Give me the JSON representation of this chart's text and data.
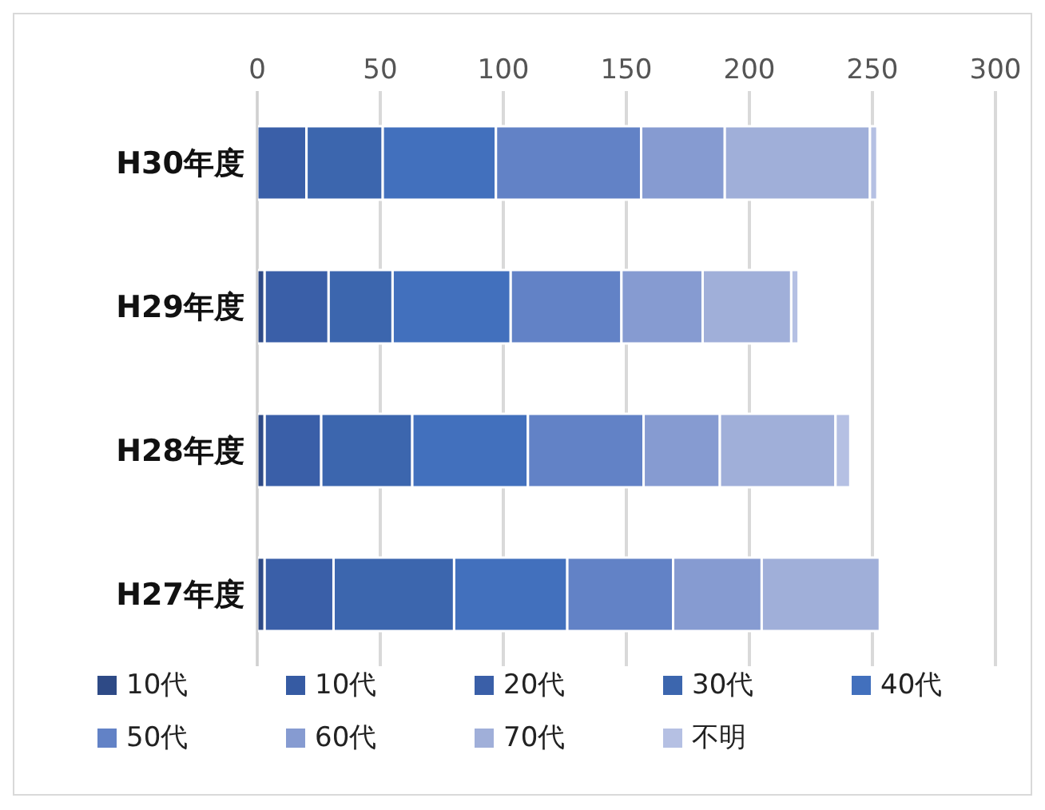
{
  "chart_data": {
    "type": "bar",
    "orientation": "horizontal",
    "stacked": true,
    "categories": [
      "H30年度",
      "H29年度",
      "H28年度",
      "H27年度"
    ],
    "xlim": [
      0,
      300
    ],
    "xticks": [
      0,
      50,
      100,
      150,
      200,
      250,
      300
    ],
    "grid": "x",
    "legend": "bottom",
    "series": [
      {
        "name": "10代",
        "color": "#2e4a86",
        "values": [
          null,
          3,
          3,
          3
        ]
      },
      {
        "name": "10代",
        "color": "#365ba3",
        "values": [
          0,
          0,
          0,
          0
        ]
      },
      {
        "name": "20代",
        "color": "#3a5fa8",
        "values": [
          20,
          26,
          23,
          28
        ]
      },
      {
        "name": "30代",
        "color": "#3c66ae",
        "values": [
          31,
          26,
          37,
          49
        ]
      },
      {
        "name": "40代",
        "color": "#4270bd",
        "values": [
          46,
          48,
          47,
          46
        ]
      },
      {
        "name": "50代",
        "color": "#6282c6",
        "values": [
          59,
          45,
          47,
          43
        ]
      },
      {
        "name": "60代",
        "color": "#869bd1",
        "values": [
          34,
          33,
          31,
          36
        ]
      },
      {
        "name": "70代",
        "color": "#a0afd9",
        "values": [
          59,
          36,
          47,
          48
        ]
      },
      {
        "name": "不明",
        "color": "#b5c0e3",
        "values": [
          3,
          3,
          6,
          0
        ]
      }
    ]
  }
}
